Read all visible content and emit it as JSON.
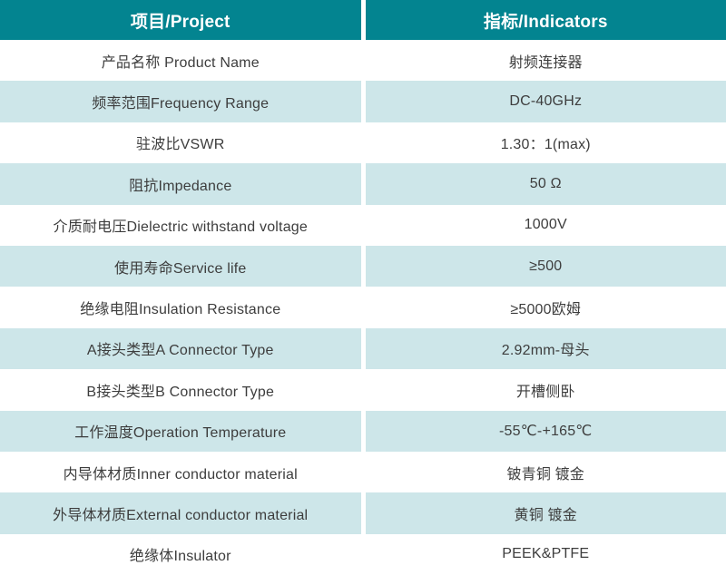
{
  "header": {
    "project": "项目/Project",
    "indicators": "指标/Indicators"
  },
  "rows": [
    {
      "label": "产品名称 Product Name",
      "value": "射频连接器"
    },
    {
      "label": "频率范围Frequency Range",
      "value": "DC-40GHz"
    },
    {
      "label": "驻波比VSWR",
      "value": "1.30：1(max)"
    },
    {
      "label": "阻抗Impedance",
      "value": "50 Ω"
    },
    {
      "label": "介质耐电压Dielectric withstand voltage",
      "value": "1000V"
    },
    {
      "label": "使用寿命Service life",
      "value": "≥500"
    },
    {
      "label": "绝缘电阻Insulation Resistance",
      "value": "≥5000欧姆"
    },
    {
      "label": "A接头类型A Connector Type",
      "value": "2.92mm-母头"
    },
    {
      "label": "B接头类型B Connector Type",
      "value": "开槽侧卧"
    },
    {
      "label": "工作温度Operation Temperature",
      "value": "-55℃-+165℃"
    },
    {
      "label": "内导体材质Inner conductor material",
      "value": "铍青铜 镀金"
    },
    {
      "label": "外导体材质External conductor material",
      "value": "黄铜 镀金"
    },
    {
      "label": "绝缘体Insulator",
      "value": "PEEK&PTFE"
    }
  ],
  "colors": {
    "header_bg": "#038490",
    "header_text": "#ffffff",
    "alt_row_bg": "#cde6e9",
    "body_text": "#3d3d3d",
    "divider": "#ffffff"
  }
}
